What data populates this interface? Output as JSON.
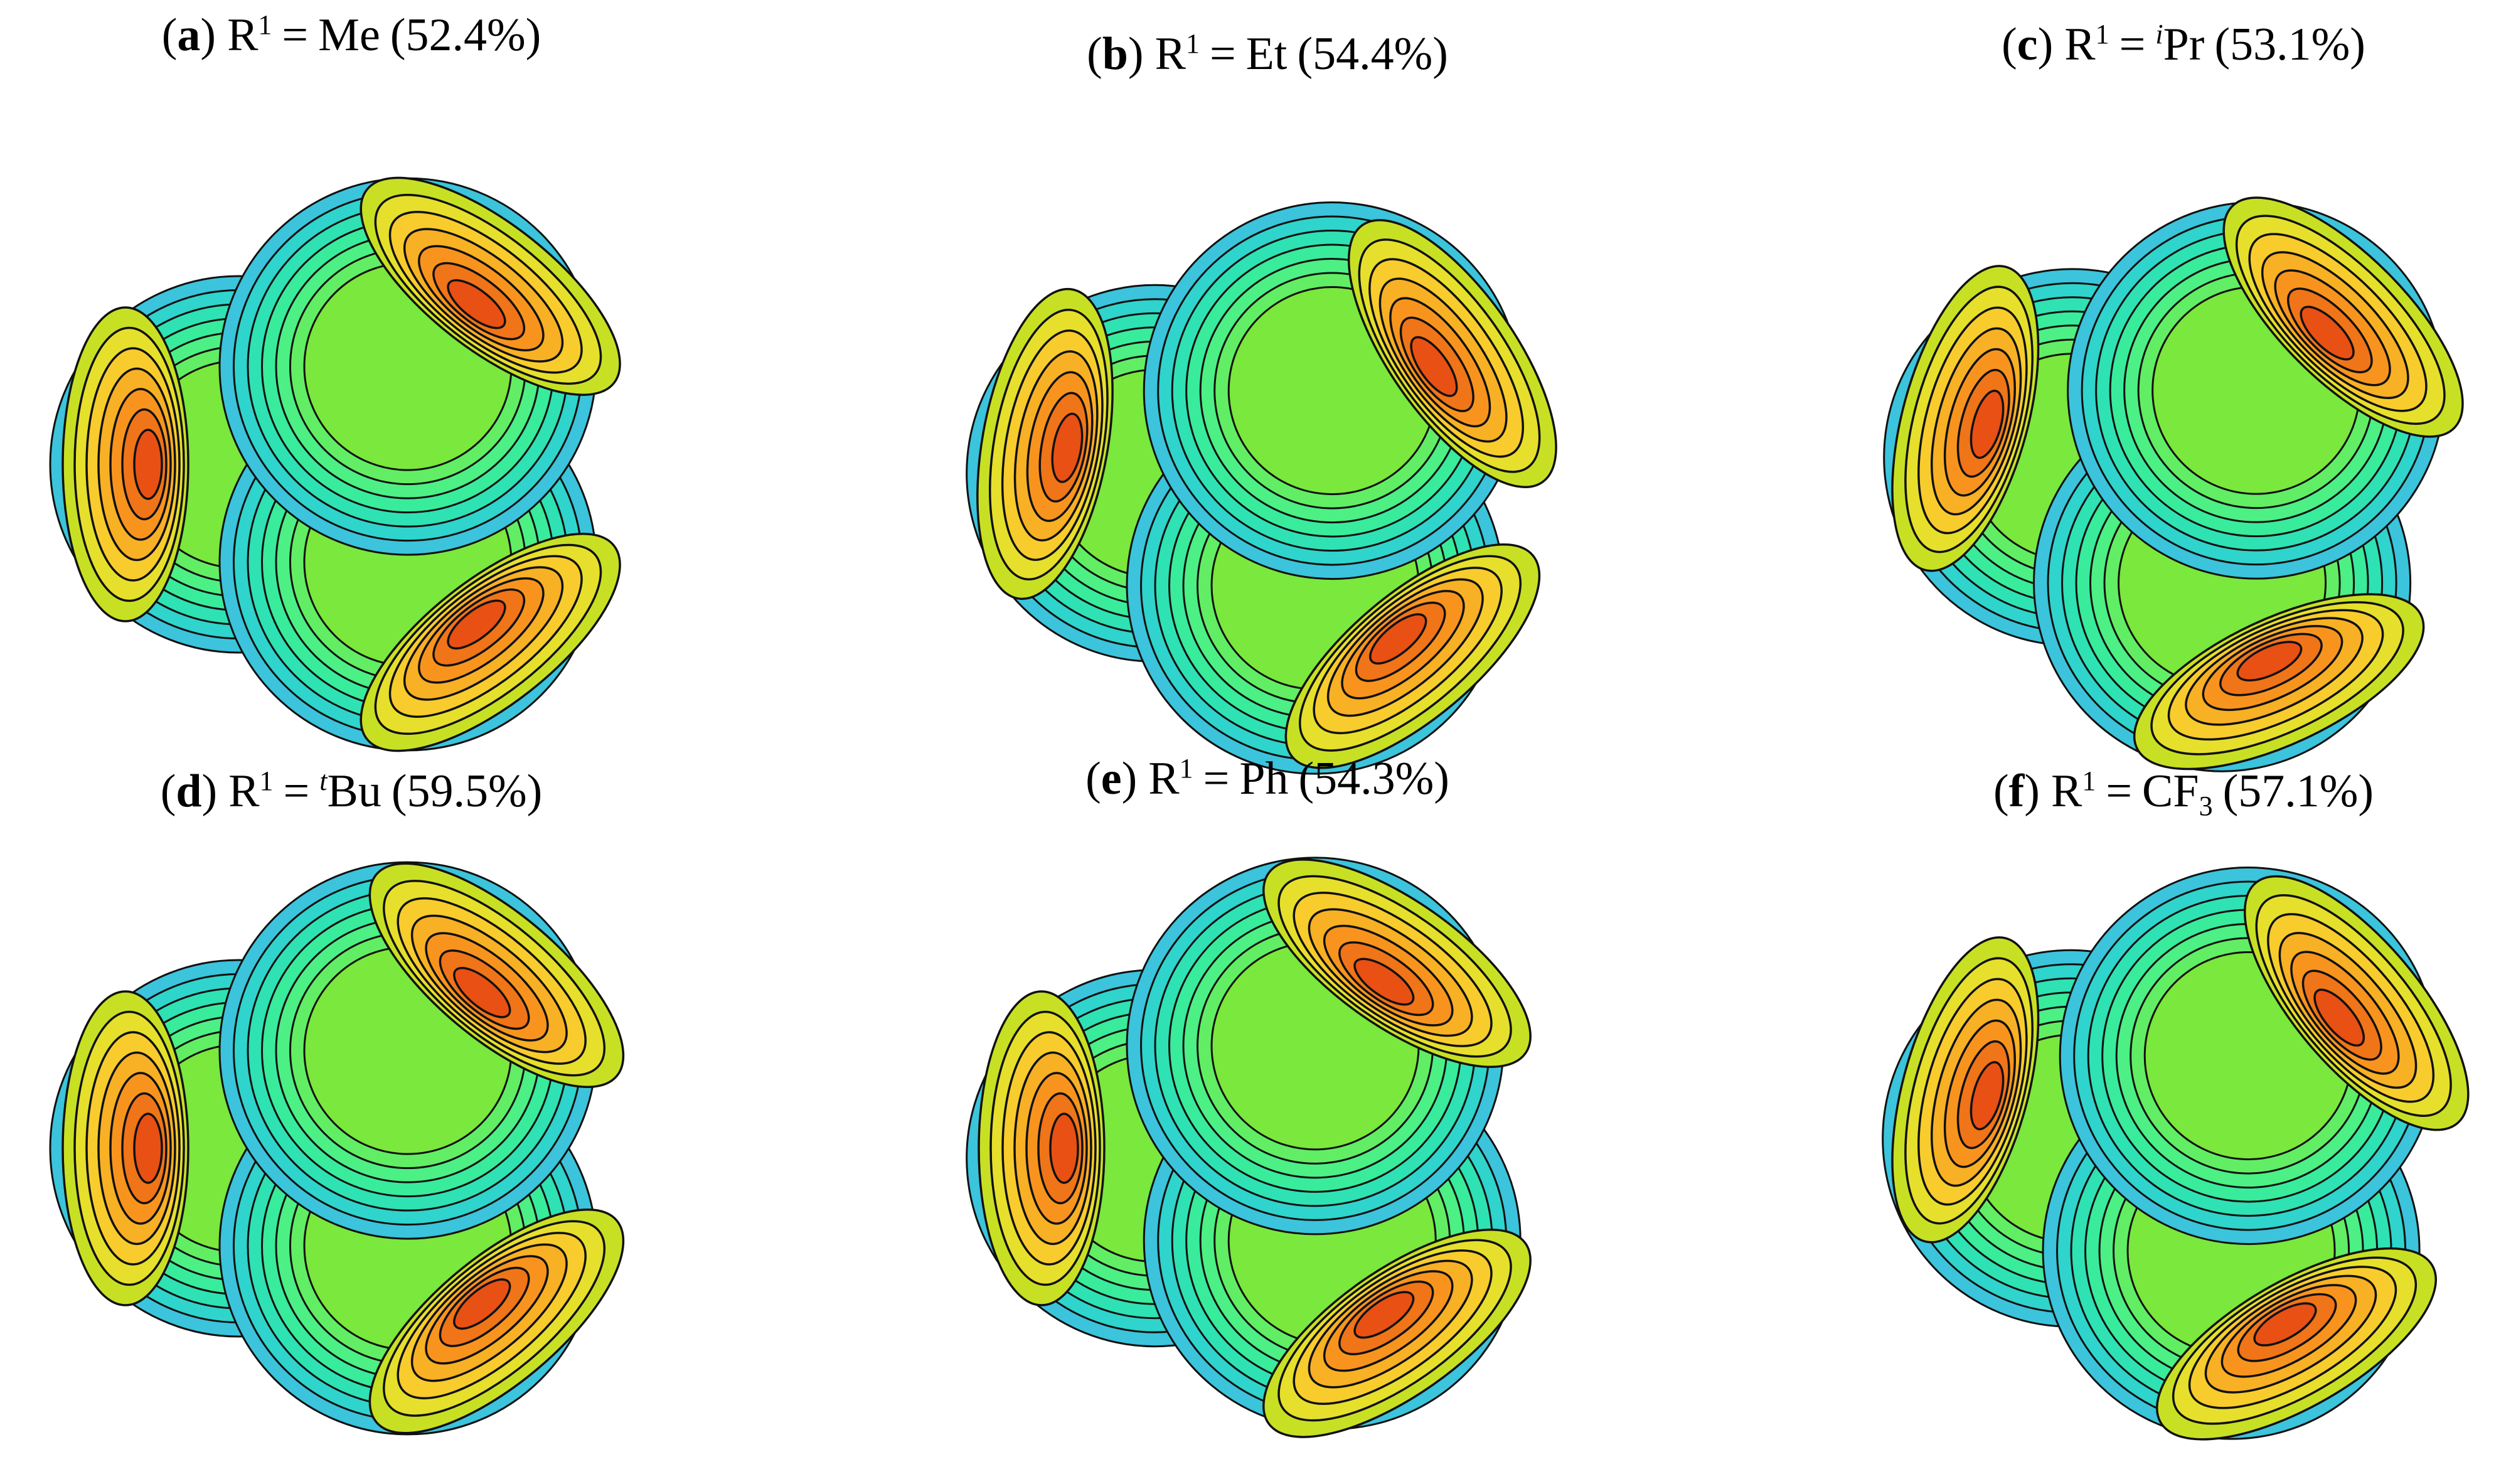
{
  "panels": [
    {
      "open": "(",
      "letter": "a",
      "close": ")",
      "prefix": "R",
      "superscript": "1",
      "equals": "=",
      "substituent": "Me",
      "percent": "(52.4%)"
    },
    {
      "open": "(",
      "letter": "b",
      "close": ")",
      "prefix": "R",
      "superscript": "1",
      "equals": "=",
      "substituent": "Et",
      "percent": "(54.4%)"
    },
    {
      "open": "(",
      "letter": "c",
      "close": ")",
      "prefix": "R",
      "superscript": "1",
      "equals": "=",
      "italic_prefix": "i",
      "substituent": "Pr",
      "percent": "(53.1%)"
    },
    {
      "open": "(",
      "letter": "d",
      "close": ")",
      "prefix": "R",
      "superscript": "1",
      "equals": "=",
      "italic_prefix": "t",
      "substituent": "Bu",
      "percent": "(59.5%)"
    },
    {
      "open": "(",
      "letter": "e",
      "close": ")",
      "prefix": "R",
      "superscript": "1",
      "equals": "=",
      "substituent": "Ph",
      "percent": "(54.3%)"
    },
    {
      "open": "(",
      "letter": "f",
      "close": ")",
      "prefix": "R",
      "superscript": "1",
      "equals": "=",
      "substituent": "CF",
      "subscript": "3",
      "percent": "(57.1%)"
    }
  ]
}
